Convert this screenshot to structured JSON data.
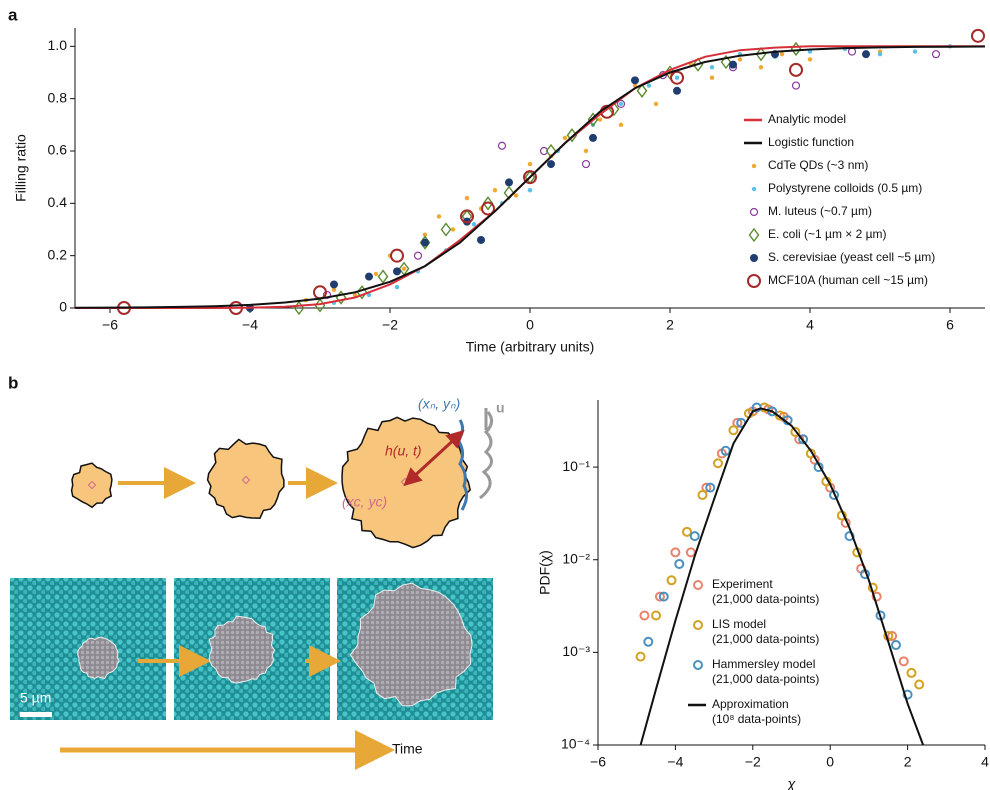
{
  "chart_data": [
    {
      "type": "scatter",
      "panel": "a",
      "xlabel": "Time (arbitrary units)",
      "ylabel": "Filling ratio",
      "xlim": [
        -6.5,
        6.5
      ],
      "ylim": [
        0,
        1.07
      ],
      "xticks": [
        {
          "value": -6,
          "label": "−6"
        },
        {
          "value": -4,
          "label": "−4"
        },
        {
          "value": -2,
          "label": "−2"
        },
        0,
        2,
        4,
        6
      ],
      "yticks": [
        0,
        0.2,
        0.4,
        0.6,
        0.8,
        {
          "value": 1.0,
          "label": "1.0"
        }
      ],
      "log_y": false,
      "series": [
        {
          "name": "Analytic model",
          "color": "#d62f3a",
          "style": "line",
          "x": [
            -6.5,
            -6,
            -5.5,
            -5,
            -4.5,
            -4,
            -3.5,
            -3,
            -2.5,
            -2,
            -1.5,
            -1,
            -0.5,
            0,
            0.5,
            1,
            1.5,
            2,
            2.5,
            3,
            3.5,
            4,
            4.5,
            5,
            5.5,
            6,
            6.5
          ],
          "values": [
            0,
            0,
            0,
            0,
            0,
            0.001,
            0.005,
            0.015,
            0.04,
            0.09,
            0.16,
            0.26,
            0.37,
            0.5,
            0.63,
            0.74,
            0.84,
            0.91,
            0.96,
            0.985,
            0.995,
            1,
            1,
            1,
            1,
            1,
            1
          ]
        },
        {
          "name": "Logistic function",
          "color": "#111111",
          "style": "line",
          "x": [
            -6.5,
            -6,
            -5.5,
            -5,
            -4.5,
            -4,
            -3.5,
            -3,
            -2.5,
            -2,
            -1.5,
            -1,
            -0.5,
            0,
            0.5,
            1,
            1.5,
            2,
            2.5,
            3,
            3.5,
            4,
            4.5,
            5,
            5.5,
            6,
            6.5
          ],
          "values": [
            0.0008,
            0.0014,
            0.0024,
            0.0041,
            0.007,
            0.012,
            0.021,
            0.036,
            0.06,
            0.1,
            0.16,
            0.25,
            0.37,
            0.5,
            0.63,
            0.75,
            0.84,
            0.9,
            0.94,
            0.964,
            0.979,
            0.988,
            0.993,
            0.9959,
            0.9976,
            0.9986,
            0.9992
          ]
        },
        {
          "name": "CdTe QDs (~3 nm)",
          "color": "#f0a830",
          "style": "dot",
          "x": [
            -3.2,
            -2.8,
            -2.5,
            -2.2,
            -2,
            -1.8,
            -1.5,
            -1.3,
            -1.1,
            -0.9,
            -0.7,
            -0.5,
            -0.2,
            0,
            0.3,
            0.5,
            0.8,
            1,
            1.3,
            1.5,
            1.8,
            2,
            2.3,
            2.6,
            3,
            3.3,
            3.6,
            4,
            4.5,
            5
          ],
          "values": [
            0.03,
            0.07,
            0.05,
            0.13,
            0.2,
            0.15,
            0.28,
            0.35,
            0.3,
            0.42,
            0.38,
            0.45,
            0.43,
            0.55,
            0.58,
            0.65,
            0.6,
            0.72,
            0.7,
            0.85,
            0.78,
            0.9,
            0.93,
            0.88,
            0.95,
            0.92,
            0.97,
            0.95,
            0.99,
            0.98
          ]
        },
        {
          "name": "Polystyrene colloids (0.5 µm)",
          "color": "#5bc0e8",
          "style": "dot",
          "x": [
            -2.8,
            -2.3,
            -1.9,
            -1.6,
            -1.2,
            -0.8,
            -0.4,
            0,
            0.4,
            0.9,
            1.3,
            1.7,
            2.1,
            2.6,
            3,
            3.5,
            4,
            4.5,
            5,
            5.5,
            6
          ],
          "values": [
            0.02,
            0.05,
            0.08,
            0.14,
            0.22,
            0.32,
            0.4,
            0.45,
            0.6,
            0.7,
            0.78,
            0.85,
            0.88,
            0.92,
            0.97,
            0.96,
            0.98,
            0.99,
            0.97,
            0.98,
            1.0
          ]
        },
        {
          "name": "M. luteus (~0.7 µm)",
          "color": "#8b3a9e",
          "style": "open-circle",
          "x": [
            -2.9,
            -1.6,
            -0.4,
            0.2,
            0.8,
            1.3,
            1.9,
            2.9,
            3.8,
            4.6,
            5.8
          ],
          "values": [
            0.05,
            0.2,
            0.62,
            0.6,
            0.55,
            0.78,
            0.89,
            0.92,
            0.85,
            0.98,
            0.97
          ]
        },
        {
          "name": "E. coli (~1 µm × 2 µm)",
          "color": "#5a8a2e",
          "style": "diamond",
          "x": [
            -3.3,
            -3,
            -2.7,
            -2.4,
            -2.1,
            -1.8,
            -1.5,
            -1.2,
            -0.9,
            -0.6,
            -0.3,
            0,
            0.3,
            0.6,
            0.9,
            1.2,
            1.6,
            2,
            2.4,
            2.8,
            3.3,
            3.8
          ],
          "values": [
            0,
            0.01,
            0.04,
            0.06,
            0.12,
            0.15,
            0.25,
            0.3,
            0.35,
            0.4,
            0.44,
            0.5,
            0.6,
            0.66,
            0.72,
            0.76,
            0.83,
            0.9,
            0.93,
            0.94,
            0.97,
            0.99
          ]
        },
        {
          "name": "S. cerevisiae (yeast cell ~5 µm)",
          "color": "#1f3d6e",
          "style": "circle",
          "x": [
            -4,
            -2.8,
            -2.3,
            -1.9,
            -1.5,
            -0.9,
            -0.7,
            -0.3,
            0.3,
            0.9,
            1.5,
            2.1,
            2.9,
            3.5,
            4.8
          ],
          "values": [
            0,
            0.09,
            0.12,
            0.14,
            0.25,
            0.33,
            0.26,
            0.48,
            0.55,
            0.65,
            0.87,
            0.83,
            0.93,
            0.97,
            0.97
          ]
        },
        {
          "name": "MCF10A (human cell ~15 µm)",
          "color": "#a52a2a",
          "style": "open-circle-large",
          "x": [
            -5.8,
            -4.2,
            -3,
            -1.9,
            -0.9,
            -0.6,
            0,
            1.1,
            2.1,
            3.8,
            6.4
          ],
          "values": [
            0,
            0,
            0.06,
            0.2,
            0.35,
            0.38,
            0.5,
            0.75,
            0.88,
            0.91,
            1.04
          ]
        }
      ]
    },
    {
      "type": "scatter",
      "panel": "b",
      "xlabel": "χ",
      "ylabel": "PDF(χ)",
      "xlim": [
        -6,
        4
      ],
      "ylim": [
        0.0001,
        0.53
      ],
      "log_y": true,
      "xticks": [
        {
          "value": -6,
          "label": "−6"
        },
        {
          "value": -4,
          "label": "−4"
        },
        {
          "value": -2,
          "label": "−2"
        },
        0,
        2,
        4
      ],
      "yticks": [
        {
          "value": 0.0001,
          "label": "10⁻⁴"
        },
        {
          "value": 0.001,
          "label": "10⁻³"
        },
        {
          "value": 0.01,
          "label": "10⁻²"
        },
        {
          "value": 0.1,
          "label": "10⁻¹"
        }
      ],
      "series": [
        {
          "name": "Experiment",
          "detail": "(21,000 data-points)",
          "color": "#e8826a",
          "style": "ring",
          "x": [
            -4.8,
            -4.4,
            -4,
            -3.6,
            -3.2,
            -2.8,
            -2.4,
            -2,
            -1.6,
            -1.2,
            -0.8,
            -0.4,
            0,
            0.4,
            0.8,
            1.2,
            1.6,
            1.9
          ],
          "values": [
            0.0025,
            0.004,
            0.012,
            0.012,
            0.06,
            0.14,
            0.3,
            0.4,
            0.42,
            0.35,
            0.2,
            0.12,
            0.06,
            0.025,
            0.008,
            0.004,
            0.0015,
            0.0008
          ]
        },
        {
          "name": "LIS model",
          "detail": "(21,000 data-points)",
          "color": "#d4a020",
          "style": "ring",
          "x": [
            -4.9,
            -4.5,
            -4.1,
            -3.7,
            -3.3,
            -2.9,
            -2.5,
            -2.1,
            -1.7,
            -1.3,
            -0.9,
            -0.5,
            -0.1,
            0.3,
            0.7,
            1.1,
            1.5,
            2.1,
            2.3
          ],
          "values": [
            0.0009,
            0.0025,
            0.006,
            0.02,
            0.05,
            0.11,
            0.25,
            0.38,
            0.44,
            0.36,
            0.24,
            0.14,
            0.07,
            0.03,
            0.012,
            0.005,
            0.0015,
            0.0006,
            0.00045
          ]
        },
        {
          "name": "Hammersley model",
          "detail": "(21,000 data-points)",
          "color": "#4a90c0",
          "style": "ring",
          "x": [
            -4.7,
            -4.3,
            -3.9,
            -3.5,
            -3.1,
            -2.7,
            -2.3,
            -1.9,
            -1.5,
            -1.1,
            -0.7,
            -0.3,
            0.1,
            0.5,
            0.9,
            1.3,
            1.7,
            2
          ],
          "values": [
            0.0013,
            0.004,
            0.009,
            0.018,
            0.06,
            0.15,
            0.3,
            0.44,
            0.4,
            0.32,
            0.2,
            0.1,
            0.05,
            0.018,
            0.007,
            0.0025,
            0.0012,
            0.00035
          ]
        },
        {
          "name": "Approximation",
          "detail": "(10⁸ data-points)",
          "color": "#111111",
          "style": "line",
          "x": [
            -4.9,
            -4.5,
            -4,
            -3.5,
            -3,
            -2.5,
            -2,
            -1.8,
            -1.5,
            -1,
            -0.5,
            0,
            0.5,
            1,
            1.5,
            2,
            2.4
          ],
          "values": [
            0.0001,
            0.0004,
            0.0022,
            0.011,
            0.045,
            0.18,
            0.4,
            0.43,
            0.4,
            0.28,
            0.15,
            0.065,
            0.022,
            0.006,
            0.0013,
            0.00028,
            0.0001
          ]
        }
      ]
    }
  ],
  "diagram": {
    "height_label": "h(u, t)",
    "edge_point": "(xₙ, yₙ)",
    "direction": "u",
    "center": "(xc, yc)",
    "scale_bar": "5 µm",
    "time_label": "Time"
  }
}
